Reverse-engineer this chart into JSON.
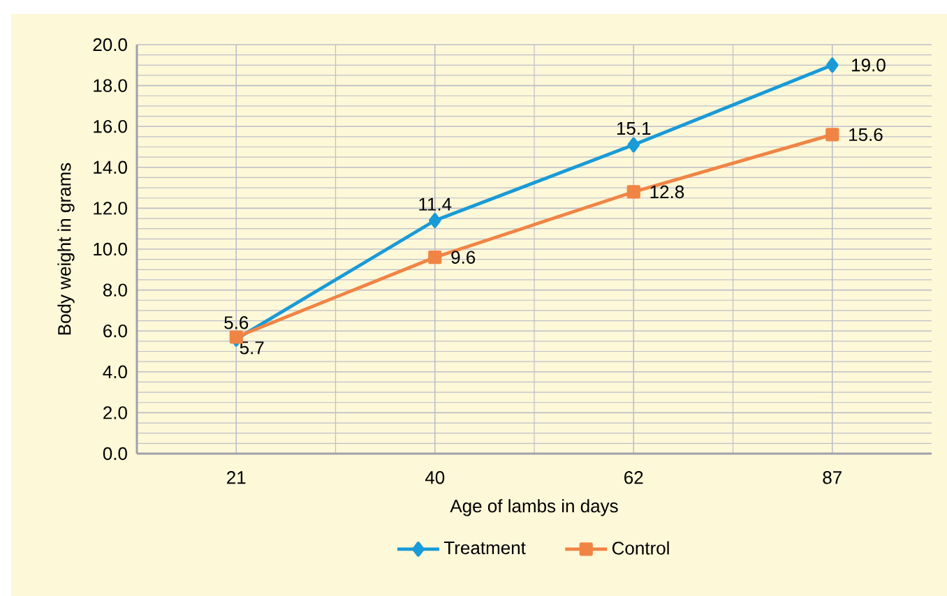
{
  "chart_data": {
    "type": "line",
    "xlabel": "Age of lambs in days",
    "ylabel": "Body weight in grams",
    "categories": [
      "21",
      "40",
      "62",
      "87"
    ],
    "series": [
      {
        "name": "Treatment",
        "color": "#1a9ad6",
        "marker": "diamond",
        "values": [
          5.6,
          11.4,
          15.1,
          19.0
        ],
        "value_labels": [
          "5.6",
          "11.4",
          "15.1",
          "19.0"
        ]
      },
      {
        "name": "Control",
        "color": "#f08445",
        "marker": "square",
        "values": [
          5.7,
          9.6,
          12.8,
          15.6
        ],
        "value_labels": [
          "5.7",
          "9.6",
          "12.8",
          "15.6"
        ]
      }
    ],
    "ylim": [
      0,
      20
    ],
    "yticks": [
      {
        "value": 0,
        "label": "0.0"
      },
      {
        "value": 2,
        "label": "2.0"
      },
      {
        "value": 4,
        "label": "4.0"
      },
      {
        "value": 6,
        "label": "6.0"
      },
      {
        "value": 8,
        "label": "8.0"
      },
      {
        "value": 10,
        "label": "10.0"
      },
      {
        "value": 12,
        "label": "12.0"
      },
      {
        "value": 14,
        "label": "14.0"
      },
      {
        "value": 16,
        "label": "16.0"
      },
      {
        "value": 18,
        "label": "18.0"
      },
      {
        "value": 20,
        "label": "20.0"
      }
    ],
    "grid": true,
    "legend": "bottom"
  }
}
